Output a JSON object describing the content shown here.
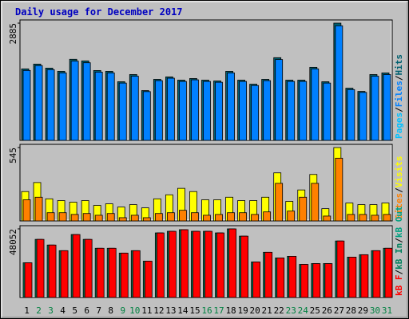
{
  "title": "Daily usage for December 2017",
  "separator": "/",
  "chart_data": [
    {
      "type": "bar",
      "ylim": [
        0,
        2885
      ],
      "yticks": [
        2885
      ],
      "series": [
        {
          "name": "Pages",
          "color": "#00c0ff",
          "values": [
            null,
            null,
            null,
            null,
            null,
            null,
            null,
            null,
            null,
            null,
            null,
            null,
            null,
            null,
            null,
            null,
            null,
            null,
            null,
            null,
            null,
            null,
            null,
            null,
            null,
            null,
            null,
            null,
            null,
            null,
            null
          ]
        },
        {
          "name": "Files",
          "color": "#0080ff",
          "values": [
            1720,
            1840,
            1740,
            1660,
            1950,
            1910,
            1680,
            1660,
            1410,
            1580,
            1200,
            1470,
            1530,
            1450,
            1490,
            1450,
            1430,
            1660,
            1450,
            1350,
            1470,
            1990,
            1450,
            1450,
            1760,
            1410,
            2820,
            1250,
            1180,
            1580,
            1620
          ]
        },
        {
          "name": "Hits",
          "color": "#006070",
          "values": [
            1759,
            1877,
            1778,
            1699,
            1996,
            1956,
            1719,
            1699,
            1443,
            1620,
            1225,
            1502,
            1561,
            1482,
            1522,
            1482,
            1462,
            1699,
            1482,
            1383,
            1502,
            2035,
            1482,
            1482,
            1798,
            1443,
            2885,
            1284,
            1205,
            1620,
            1660
          ]
        }
      ]
    },
    {
      "type": "bar",
      "ylim": [
        0,
        545
      ],
      "yticks": [
        545
      ],
      "series": [
        {
          "name": "Sites",
          "color": "#ff8000",
          "values": [
            157,
            176,
            61,
            61,
            48,
            55,
            42,
            55,
            24,
            42,
            24,
            55,
            61,
            79,
            61,
            42,
            48,
            61,
            61,
            48,
            67,
            279,
            73,
            176,
            279,
            36,
            466,
            48,
            48,
            42,
            48
          ]
        },
        {
          "name": "Visits",
          "color": "#ffff00",
          "values": [
            218,
            285,
            164,
            151,
            139,
            151,
            115,
            127,
            103,
            121,
            97,
            164,
            194,
            242,
            218,
            157,
            157,
            176,
            151,
            151,
            176,
            357,
            145,
            230,
            345,
            91,
            545,
            133,
            121,
            121,
            133
          ]
        }
      ]
    },
    {
      "type": "bar",
      "ylim": [
        0,
        48052
      ],
      "yticks": [
        48052
      ],
      "categories": [
        "1",
        "2",
        "3",
        "4",
        "5",
        "6",
        "7",
        "8",
        "9",
        "10",
        "11",
        "12",
        "13",
        "14",
        "15",
        "16",
        "17",
        "18",
        "19",
        "20",
        "21",
        "22",
        "23",
        "24",
        "25",
        "26",
        "27",
        "28",
        "29",
        "30",
        "31"
      ],
      "category_colors": [
        "#000000",
        "#008040",
        "#008040",
        "#000000",
        "#000000",
        "#000000",
        "#000000",
        "#000000",
        "#008040",
        "#008040",
        "#000000",
        "#000000",
        "#000000",
        "#000000",
        "#000000",
        "#008040",
        "#008040",
        "#000000",
        "#000000",
        "#000000",
        "#000000",
        "#000000",
        "#008040",
        "#008040",
        "#000000",
        "#000000",
        "#000000",
        "#000000",
        "#000000",
        "#008040",
        "#008040"
      ],
      "series": [
        {
          "name": "kB F",
          "color": "#ff0000",
          "values": [
            24309,
            40702,
            36745,
            32788,
            44094,
            40702,
            34484,
            34484,
            31092,
            32788,
            25440,
            45225,
            46356,
            47487,
            46356,
            46356,
            45225,
            48052,
            42963,
            24874,
            31657,
            27700,
            28831,
            23178,
            23743,
            23743,
            39572,
            28266,
            29962,
            32788,
            34484
          ]
        },
        {
          "name": "kB In",
          "color": "#00805c",
          "values": [
            24309,
            40702,
            36745,
            32788,
            44094,
            40702,
            34484,
            34484,
            31092,
            32788,
            25440,
            45225,
            46356,
            47487,
            46356,
            46356,
            45225,
            48052,
            42963,
            24874,
            31657,
            27700,
            28831,
            23178,
            23743,
            23743,
            39572,
            28266,
            29962,
            32788,
            34484
          ]
        },
        {
          "name": "kB Out",
          "color": "#00a080",
          "values": [
            null,
            null,
            null,
            null,
            null,
            null,
            null,
            null,
            null,
            null,
            null,
            null,
            null,
            null,
            null,
            null,
            null,
            null,
            null,
            null,
            null,
            null,
            null,
            null,
            null,
            null,
            null,
            null,
            null,
            null,
            null
          ]
        }
      ]
    }
  ]
}
